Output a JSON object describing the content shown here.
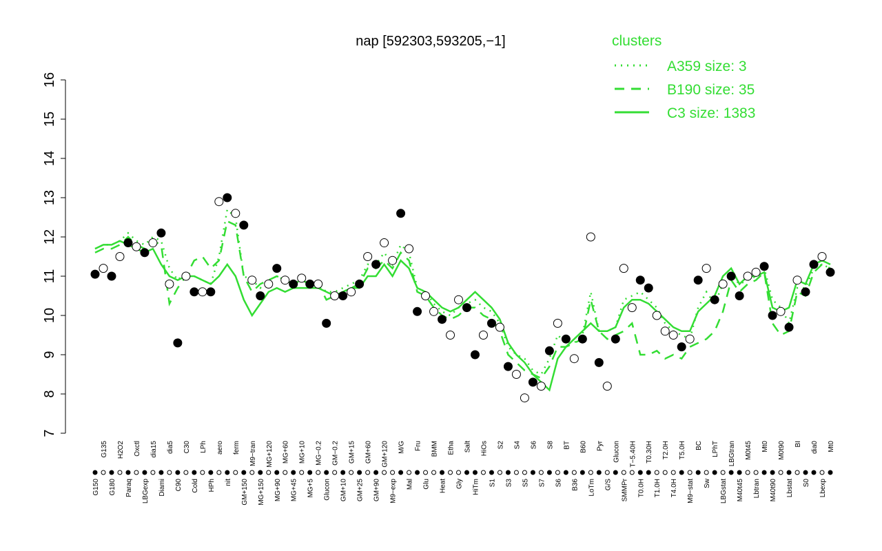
{
  "chart_data": {
    "type": "line",
    "title": "nap [592303,593205,−1]",
    "legend_title": "clusters",
    "legend": "top-right",
    "ylim": [
      7,
      16
    ],
    "yticks": [
      7,
      8,
      9,
      10,
      11,
      12,
      13,
      14,
      15,
      16
    ],
    "categories": [
      "G150",
      "G135",
      "G180",
      "H2O2",
      "Paraq",
      "Oxctl",
      "LBGexp",
      "dia15",
      "Diami",
      "dia5",
      "C90",
      "C30",
      "Cold",
      "LPh",
      "HPh",
      "aero",
      "nit",
      "ferm",
      "GM+150",
      "M9−tran",
      "MG+150",
      "MG+120",
      "MG+90",
      "MG+60",
      "MG+45",
      "MG+10",
      "MG+5",
      "MG−0.2",
      "Glucon",
      "GM−0.2",
      "GM+10",
      "GM+15",
      "GM+25",
      "GM+60",
      "GM+90",
      "GM+120",
      "M9−exp",
      "M/G",
      "Mal",
      "Fru",
      "Glu",
      "BMM",
      "Heat",
      "Etha",
      "Gly",
      "Salt",
      "HiTm",
      "HiOs",
      "S1",
      "S2",
      "S3",
      "S4",
      "S5",
      "S6",
      "S7",
      "S8",
      "S6",
      "BT",
      "B36",
      "B60",
      "LoTm",
      "Pyr",
      "G/S",
      "Glucon",
      "SMMPr",
      "T−5.40H",
      "T0.0H",
      "T0.30H",
      "T1.0H",
      "T2.0H",
      "T4.0H",
      "T5.0H",
      "M9−stat",
      "BC",
      "Sw",
      "LPhT",
      "LBGstat",
      "LBGtran",
      "M40t45",
      "M0t45",
      "Lbtran",
      "Mt0",
      "M40t90",
      "M0t90",
      "Lbstat",
      "BI",
      "S0",
      "dia0",
      "Lbexp",
      "Mt0"
    ],
    "points": {
      "values": [
        11.05,
        11.2,
        11.0,
        11.5,
        11.85,
        11.75,
        11.6,
        11.85,
        12.1,
        10.8,
        9.3,
        11.0,
        10.6,
        10.6,
        10.6,
        12.9,
        13.0,
        12.6,
        12.3,
        10.9,
        10.5,
        10.8,
        11.2,
        10.9,
        10.8,
        10.95,
        10.8,
        10.8,
        9.8,
        10.5,
        10.5,
        10.6,
        10.8,
        11.5,
        11.3,
        11.85,
        11.4,
        12.6,
        11.7,
        10.1,
        10.5,
        10.1,
        9.9,
        9.5,
        10.4,
        10.2,
        9.0,
        9.5,
        9.8,
        9.7,
        8.7,
        8.5,
        7.9,
        8.3,
        8.2,
        9.1,
        9.8,
        9.4,
        8.9,
        9.4,
        12.0,
        8.8,
        8.2,
        9.4,
        11.2,
        10.2,
        10.9,
        10.7,
        10.0,
        9.6,
        9.5,
        9.2,
        9.4,
        10.9,
        11.2,
        10.4,
        10.8,
        11.0,
        10.5,
        11.0,
        11.1,
        11.25,
        10.0,
        10.1,
        9.7,
        10.9,
        10.6,
        11.3,
        11.5,
        11.1
      ],
      "filled": [
        true,
        false,
        true,
        false,
        true,
        false,
        true,
        false,
        true,
        false,
        true,
        false,
        true,
        false,
        true,
        false,
        true,
        false,
        true,
        false,
        true,
        false,
        true,
        false,
        true,
        false,
        true,
        false,
        true,
        false,
        true,
        false,
        true,
        false,
        true,
        false,
        false,
        true,
        false,
        true,
        false,
        false,
        true,
        false,
        false,
        true,
        true,
        false,
        true,
        false,
        true,
        false,
        false,
        true,
        false,
        true,
        false,
        true,
        false,
        true,
        false,
        true,
        false,
        true,
        false,
        false,
        true,
        true,
        false,
        false,
        false,
        true,
        false,
        true,
        false,
        true,
        false,
        true,
        true,
        false,
        false,
        true,
        true,
        false,
        true,
        false,
        true,
        true,
        false,
        true
      ]
    },
    "series": [
      {
        "name": "A359 size: 3",
        "color": "#33dd33",
        "dash": "dotted",
        "values": [
          11.7,
          11.8,
          11.8,
          11.9,
          12.1,
          11.9,
          11.8,
          12.0,
          11.9,
          11.2,
          10.9,
          11.1,
          11.0,
          10.9,
          10.8,
          11.5,
          12.7,
          12.5,
          11.0,
          10.9,
          10.7,
          10.9,
          11.0,
          10.9,
          10.8,
          10.9,
          10.8,
          10.8,
          10.6,
          10.6,
          10.7,
          10.8,
          10.9,
          11.3,
          11.3,
          11.6,
          11.3,
          11.8,
          11.6,
          10.7,
          10.6,
          10.3,
          10.1,
          10.0,
          10.2,
          10.3,
          10.4,
          10.2,
          10.1,
          9.8,
          9.2,
          9.0,
          8.9,
          8.6,
          8.5,
          8.9,
          9.5,
          9.3,
          9.3,
          9.5,
          10.6,
          9.6,
          9.6,
          9.7,
          10.4,
          10.5,
          10.6,
          10.4,
          10.2,
          9.8,
          9.6,
          9.5,
          9.4,
          10.2,
          10.6,
          10.3,
          10.8,
          11.0,
          10.8,
          10.9,
          11.0,
          11.2,
          10.4,
          10.2,
          9.8,
          10.7,
          10.7,
          11.2,
          11.3,
          11.2
        ]
      },
      {
        "name": "B190 size: 35",
        "color": "#33dd33",
        "dash": "dashed",
        "values": [
          11.6,
          11.7,
          11.7,
          11.8,
          12.0,
          11.8,
          11.7,
          11.9,
          11.8,
          10.3,
          10.7,
          11.0,
          11.4,
          11.5,
          11.2,
          11.4,
          12.4,
          12.3,
          11.0,
          10.6,
          10.8,
          10.9,
          11.0,
          10.9,
          10.8,
          10.9,
          10.8,
          10.8,
          10.4,
          10.5,
          10.6,
          10.7,
          10.8,
          11.2,
          11.2,
          11.4,
          11.2,
          11.6,
          11.4,
          10.6,
          10.5,
          10.2,
          10.0,
          9.9,
          10.0,
          10.2,
          10.2,
          10.0,
          9.9,
          9.6,
          9.0,
          8.8,
          8.6,
          8.5,
          8.4,
          8.7,
          9.2,
          9.2,
          9.3,
          9.4,
          10.4,
          9.6,
          9.4,
          9.5,
          9.6,
          9.8,
          9.0,
          9.0,
          9.1,
          8.9,
          9.0,
          8.9,
          9.2,
          9.3,
          9.4,
          9.6,
          10.1,
          10.9,
          10.6,
          10.8,
          10.9,
          11.1,
          9.8,
          9.5,
          9.6,
          10.6,
          10.5,
          11.1,
          11.3,
          11.2
        ]
      },
      {
        "name": "C3 size: 1383",
        "color": "#33dd33",
        "dash": "solid",
        "values": [
          11.7,
          11.8,
          11.8,
          11.9,
          11.8,
          11.7,
          11.6,
          11.7,
          11.3,
          11.0,
          10.9,
          11.0,
          11.0,
          10.9,
          10.8,
          11.0,
          11.3,
          11.0,
          10.4,
          10.0,
          10.3,
          10.6,
          10.7,
          10.6,
          10.7,
          10.7,
          10.7,
          10.7,
          10.6,
          10.5,
          10.6,
          10.7,
          10.7,
          11.0,
          11.0,
          11.3,
          11.0,
          11.4,
          11.2,
          10.7,
          10.6,
          10.4,
          10.2,
          10.1,
          10.2,
          10.4,
          10.6,
          10.4,
          10.2,
          9.9,
          9.3,
          9.0,
          8.8,
          8.5,
          8.3,
          8.1,
          8.9,
          9.2,
          9.4,
          9.6,
          9.8,
          9.6,
          9.6,
          9.7,
          10.2,
          10.4,
          10.4,
          10.3,
          10.1,
          9.9,
          9.7,
          9.6,
          9.6,
          10.1,
          10.3,
          10.5,
          11.0,
          11.2,
          10.8,
          11.0,
          11.0,
          11.1,
          10.2,
          10.1,
          10.2,
          10.9,
          10.8,
          11.3,
          11.4,
          11.3
        ]
      }
    ]
  }
}
